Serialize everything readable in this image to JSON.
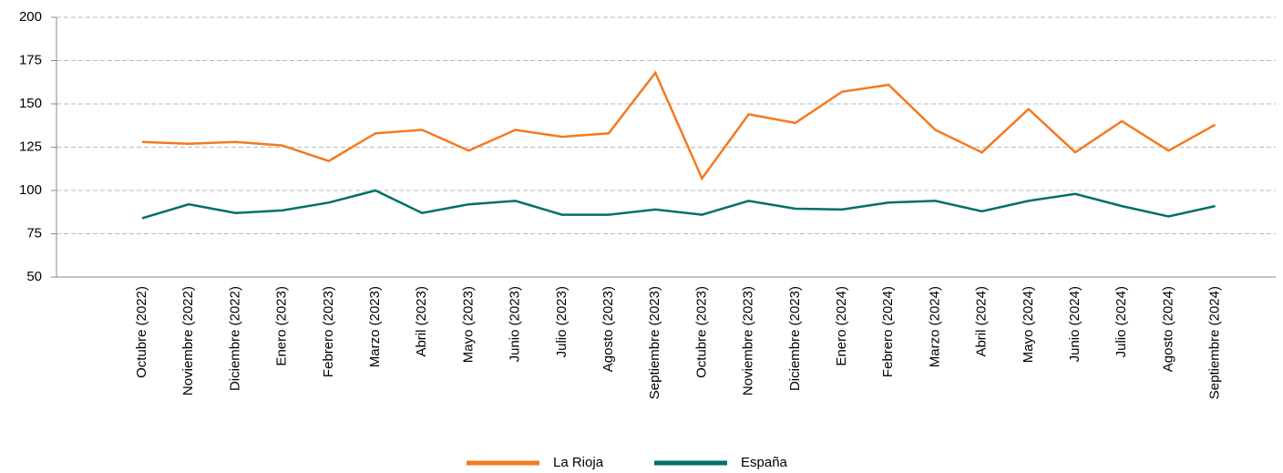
{
  "chart_data": {
    "type": "line",
    "categories": [
      "Octubre (2022)",
      "Noviembre (2022)",
      "Diciembre (2022)",
      "Enero (2023)",
      "Febrero (2023)",
      "Marzo (2023)",
      "Abril (2023)",
      "Mayo (2023)",
      "Junio (2023)",
      "Julio (2023)",
      "Agosto (2023)",
      "Septiembre (2023)",
      "Octubre (2023)",
      "Noviembre (2023)",
      "Diciembre (2023)",
      "Enero (2024)",
      "Febrero (2024)",
      "Marzo (2024)",
      "Abril (2024)",
      "Mayo (2024)",
      "Junio (2024)",
      "Julio (2024)",
      "Agosto (2024)",
      "Septiembre (2024)"
    ],
    "series": [
      {
        "name": "La Rioja",
        "color": "#f47920",
        "values": [
          128,
          127,
          128,
          126,
          117,
          133,
          135,
          123,
          135,
          131,
          133,
          168,
          107,
          144,
          139,
          157,
          161,
          135,
          122,
          147,
          122,
          140,
          123,
          138
        ]
      },
      {
        "name": "España",
        "color": "#006f6a",
        "values": [
          84,
          92,
          87,
          88.5,
          93,
          100,
          87,
          92,
          94,
          86,
          86,
          89,
          86,
          94,
          89.5,
          89,
          93,
          94,
          88,
          94,
          98,
          91,
          85,
          91
        ]
      }
    ],
    "ylim": [
      50,
      200
    ],
    "yticks": [
      50,
      75,
      100,
      125,
      150,
      175,
      200
    ],
    "grid": true,
    "legend": "bottom"
  }
}
